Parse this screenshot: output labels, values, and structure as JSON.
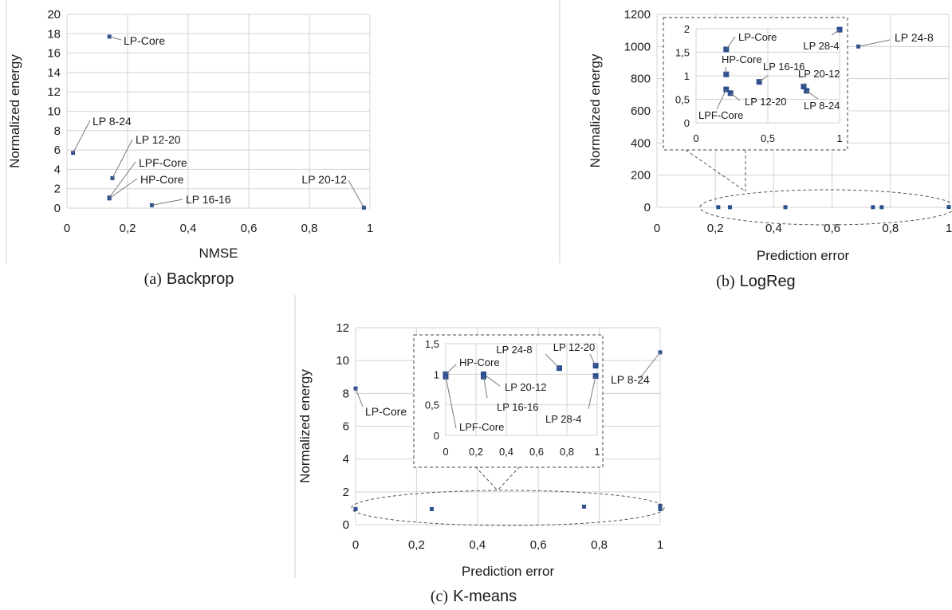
{
  "colors": {
    "marker": "#2b4f8f",
    "grid": "#d3d3d3",
    "text": "#1a1a1a",
    "leader": "#7a7a7a",
    "frame": "#cfcfcf"
  },
  "chart_data": [
    {
      "type": "scatter",
      "caption": {
        "letter": "(a)",
        "name": "Backprop"
      },
      "xlabel": "NMSE",
      "ylabel": "Normalized energy",
      "xlim": [
        0,
        1
      ],
      "ylim": [
        0,
        20
      ],
      "xticks": [
        "0",
        "0,2",
        "0,4",
        "0,6",
        "0,8",
        "1"
      ],
      "yticks": [
        "0",
        "2",
        "4",
        "6",
        "8",
        "10",
        "12",
        "14",
        "16",
        "18",
        "20"
      ],
      "grid": true,
      "points": [
        {
          "label": "LP-Core",
          "x": 0.14,
          "y": 17.7
        },
        {
          "label": "LP 8-24",
          "x": 0.02,
          "y": 5.7
        },
        {
          "label": "LP 12-20",
          "x": 0.15,
          "y": 3.1
        },
        {
          "label": "LPF-Core",
          "x": 0.14,
          "y": 1.1
        },
        {
          "label": "HP-Core",
          "x": 0.14,
          "y": 1.0
        },
        {
          "label": "LP 16-16",
          "x": 0.28,
          "y": 0.3
        },
        {
          "label": "LP 20-12",
          "x": 0.98,
          "y": 0.05
        }
      ]
    },
    {
      "type": "scatter",
      "caption": {
        "letter": "(b)",
        "name": "LogReg"
      },
      "xlabel": "Prediction error",
      "ylabel": "Normalized energy",
      "xlim": [
        0,
        1
      ],
      "ylim": [
        0,
        1200
      ],
      "xticks": [
        "0",
        "0,2",
        "0,4",
        "0,6",
        "0,8",
        "1"
      ],
      "yticks": [
        "0",
        "200",
        "400",
        "600",
        "800",
        "1000",
        "1200"
      ],
      "grid": true,
      "points": [
        {
          "label": "LP 24-8",
          "x": 0.69,
          "y": 1000
        },
        {
          "label": "",
          "x": 0.21,
          "y": 1.06
        },
        {
          "label": "",
          "x": 0.25,
          "y": 0.6
        },
        {
          "label": "",
          "x": 0.44,
          "y": 0.86
        },
        {
          "label": "",
          "x": 0.74,
          "y": 0.76
        },
        {
          "label": "",
          "x": 0.77,
          "y": 0.67
        },
        {
          "label": "",
          "x": 1.0,
          "y": 2.0
        }
      ],
      "inset": {
        "xlim": [
          0,
          1
        ],
        "ylim": [
          0,
          2
        ],
        "xticks": [
          "0",
          "0,5",
          "1"
        ],
        "yticks": [
          "0",
          "0,5",
          "1",
          "1,5",
          "2"
        ],
        "points": [
          {
            "label": "LP-Core",
            "x": 0.21,
            "y": 1.56
          },
          {
            "label": "HP-Core",
            "x": 0.21,
            "y": 1.03
          },
          {
            "label": "LP 16-16",
            "x": 0.44,
            "y": 0.87
          },
          {
            "label": "LP 28-4",
            "x": 1.0,
            "y": 1.98
          },
          {
            "label": "LP 20-12",
            "x": 0.75,
            "y": 0.77
          },
          {
            "label": "LP 8-24",
            "x": 0.77,
            "y": 0.68
          },
          {
            "label": "LPF-Core",
            "x": 0.21,
            "y": 0.71
          },
          {
            "label": "LP 12-20",
            "x": 0.24,
            "y": 0.63
          }
        ]
      }
    },
    {
      "type": "scatter",
      "caption": {
        "letter": "(c)",
        "name": "K-means"
      },
      "xlabel": "Prediction error",
      "ylabel": "Normalized energy",
      "xlim": [
        0,
        1
      ],
      "ylim": [
        0,
        12
      ],
      "xticks": [
        "0",
        "0,2",
        "0,4",
        "0,6",
        "0,8",
        "1"
      ],
      "yticks": [
        "0",
        "2",
        "4",
        "6",
        "8",
        "10",
        "12"
      ],
      "grid": true,
      "points": [
        {
          "label": "LP-Core",
          "x": 0.0,
          "y": 8.3
        },
        {
          "label": "LP 8-24",
          "x": 1.0,
          "y": 10.5
        },
        {
          "label": "",
          "x": 0.0,
          "y": 0.95
        },
        {
          "label": "",
          "x": 0.25,
          "y": 0.95
        },
        {
          "label": "",
          "x": 0.75,
          "y": 1.1
        },
        {
          "label": "",
          "x": 1.0,
          "y": 1.15
        },
        {
          "label": "",
          "x": 1.0,
          "y": 0.95
        }
      ],
      "inset": {
        "xlim": [
          0,
          1
        ],
        "ylim": [
          0,
          1.5
        ],
        "xticks": [
          "0",
          "0,2",
          "0,4",
          "0,6",
          "0,8",
          "1"
        ],
        "yticks": [
          "0",
          "0,5",
          "1",
          "1,5"
        ],
        "points": [
          {
            "label": "HP-Core",
            "x": 0.0,
            "y": 1.0
          },
          {
            "label": "LPF-Core",
            "x": 0.0,
            "y": 0.96
          },
          {
            "label": "LP 24-8",
            "x": 0.75,
            "y": 1.1
          },
          {
            "label": "LP 12-20",
            "x": 0.99,
            "y": 1.14
          },
          {
            "label": "LP 20-12",
            "x": 0.25,
            "y": 1.0
          },
          {
            "label": "LP 16-16",
            "x": 0.25,
            "y": 0.96
          },
          {
            "label": "LP 28-4",
            "x": 0.99,
            "y": 0.97
          }
        ]
      }
    }
  ]
}
